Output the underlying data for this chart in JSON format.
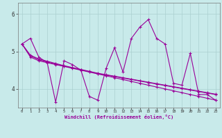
{
  "xlabel": "Windchill (Refroidissement éolien,°C)",
  "bg_color": "#c8eaea",
  "line_color": "#990099",
  "markersize": 2.5,
  "linewidth": 0.8,
  "xlim": [
    -0.5,
    23.5
  ],
  "ylim": [
    3.5,
    6.3
  ],
  "yticks": [
    4,
    5,
    6
  ],
  "xticks": [
    0,
    1,
    2,
    3,
    4,
    5,
    6,
    7,
    8,
    9,
    10,
    11,
    12,
    13,
    14,
    15,
    16,
    17,
    18,
    19,
    20,
    21,
    22,
    23
  ],
  "grid_color": "#aacfcf",
  "series": [
    [
      5.2,
      5.35,
      4.85,
      4.7,
      3.65,
      4.75,
      4.65,
      4.5,
      3.8,
      3.7,
      4.55,
      5.1,
      4.45,
      5.35,
      5.65,
      5.85,
      5.35,
      5.2,
      4.15,
      4.1,
      4.95,
      3.85,
      3.85,
      3.7
    ],
    [
      5.2,
      4.85,
      4.75,
      4.7,
      4.65,
      4.6,
      4.55,
      4.5,
      4.45,
      4.4,
      4.35,
      4.3,
      4.25,
      4.2,
      4.15,
      4.1,
      4.05,
      4.0,
      3.95,
      3.9,
      3.85,
      3.8,
      3.75,
      3.7
    ],
    [
      5.2,
      4.88,
      4.78,
      4.72,
      4.66,
      4.61,
      4.56,
      4.51,
      4.46,
      4.41,
      4.37,
      4.33,
      4.29,
      4.25,
      4.21,
      4.17,
      4.13,
      4.09,
      4.05,
      4.01,
      3.97,
      3.93,
      3.89,
      3.85
    ],
    [
      5.2,
      4.9,
      4.8,
      4.74,
      4.68,
      4.62,
      4.57,
      4.52,
      4.47,
      4.42,
      4.38,
      4.34,
      4.3,
      4.26,
      4.22,
      4.18,
      4.14,
      4.1,
      4.06,
      4.02,
      3.98,
      3.94,
      3.9,
      3.86
    ]
  ]
}
